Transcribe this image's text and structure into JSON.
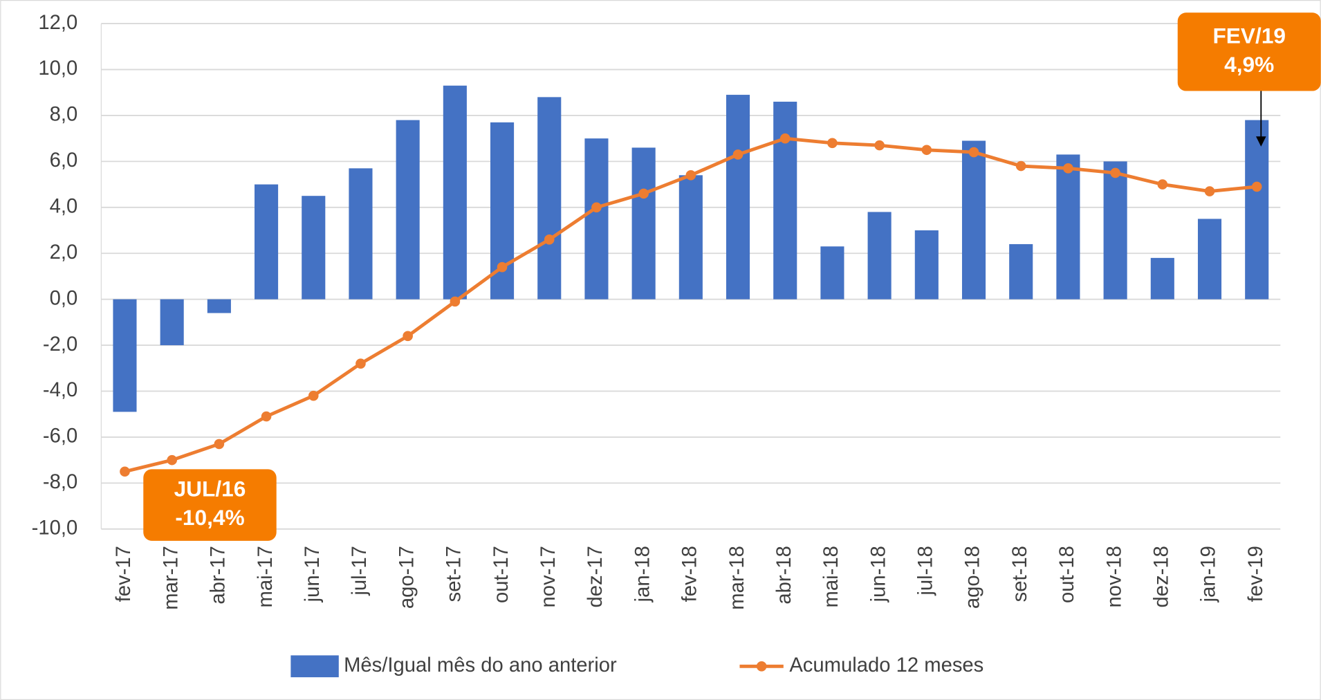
{
  "chart_data": {
    "type": "bar-line",
    "categories": [
      "fev-17",
      "mar-17",
      "abr-17",
      "mai-17",
      "jun-17",
      "jul-17",
      "ago-17",
      "set-17",
      "out-17",
      "nov-17",
      "dez-17",
      "jan-18",
      "fev-18",
      "mar-18",
      "abr-18",
      "mai-18",
      "jun-18",
      "jul-18",
      "ago-18",
      "set-18",
      "out-18",
      "nov-18",
      "dez-18",
      "jan-19",
      "fev-19"
    ],
    "series": [
      {
        "name": "Mês/Igual mês do ano anterior",
        "color": "#4472c4",
        "type": "bar",
        "values": [
          -4.9,
          -2.0,
          -0.6,
          5.0,
          4.5,
          5.7,
          7.8,
          9.3,
          7.7,
          8.8,
          7.0,
          6.6,
          5.4,
          8.9,
          8.6,
          2.3,
          3.8,
          3.0,
          6.9,
          2.4,
          6.3,
          6.0,
          1.8,
          3.5,
          7.8
        ]
      },
      {
        "name": "Acumulado 12 meses",
        "color": "#ed7d31",
        "type": "line",
        "values": [
          -7.5,
          -7.0,
          -6.3,
          -5.1,
          -4.2,
          -2.8,
          -1.6,
          -0.1,
          1.4,
          2.6,
          4.0,
          4.6,
          5.4,
          6.3,
          7.0,
          6.8,
          6.7,
          6.5,
          6.4,
          5.8,
          5.7,
          5.5,
          5.0,
          4.7,
          4.9
        ]
      }
    ],
    "ylim": [
      -10,
      12
    ],
    "yticks": [
      {
        "value": -10,
        "label": "-10,0"
      },
      {
        "value": -8,
        "label": "-8,0"
      },
      {
        "value": -6,
        "label": "-6,0"
      },
      {
        "value": -4,
        "label": "-4,0"
      },
      {
        "value": -2,
        "label": "-2,0"
      },
      {
        "value": 0,
        "label": "0,0"
      },
      {
        "value": 2,
        "label": "2,0"
      },
      {
        "value": 4,
        "label": "4,0"
      },
      {
        "value": 6,
        "label": "6,0"
      },
      {
        "value": 8,
        "label": "8,0"
      },
      {
        "value": 10,
        "label": "10,0"
      },
      {
        "value": 12,
        "label": "12,0"
      }
    ],
    "grid": true,
    "annotations": [
      {
        "lines": [
          "JUL/16",
          "-10,4%"
        ],
        "color": "#f57c00"
      },
      {
        "lines": [
          "FEV/19",
          "4,9%"
        ],
        "color": "#f57c00"
      }
    ]
  }
}
